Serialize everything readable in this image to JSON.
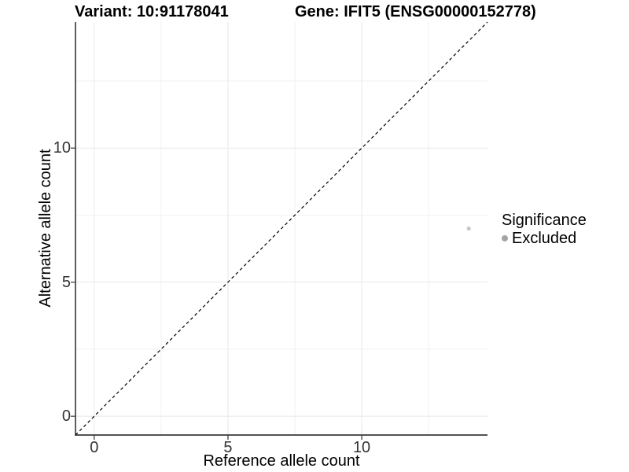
{
  "chart_data": {
    "type": "scatter",
    "title_left": "Variant: 10:91178041",
    "title_right": "Gene: IFIT5 (ENSG00000152778)",
    "xlabel": "Reference allele count",
    "ylabel": "Alternative allele count",
    "xlim": [
      -0.7,
      14.7
    ],
    "ylim": [
      -0.7,
      14.7
    ],
    "x_major_ticks": [
      0,
      5,
      10
    ],
    "y_major_ticks": [
      0,
      5,
      10
    ],
    "x_minor_ticks": [
      2.5,
      7.5,
      12.5
    ],
    "y_minor_ticks": [
      2.5,
      7.5,
      12.5
    ],
    "grid": true,
    "identity_line": {
      "style": "dashed",
      "color": "#000000",
      "equation": "y = x"
    },
    "series": [
      {
        "name": "Excluded",
        "color": "#c8c8c8",
        "point_radius": 2.6,
        "points": [
          {
            "x": 14,
            "y": 7
          }
        ]
      }
    ],
    "legend": {
      "title": "Significance",
      "position": "right",
      "items": [
        {
          "label": "Excluded",
          "color": "#a4a4a4"
        }
      ]
    },
    "colors": {
      "grid_major": "#e8e8e8",
      "grid_minor": "#f2f2f2",
      "axis_line": "#1a1a1a",
      "tick_mark": "#333333",
      "tick_text": "#333333",
      "background": "#ffffff"
    }
  }
}
